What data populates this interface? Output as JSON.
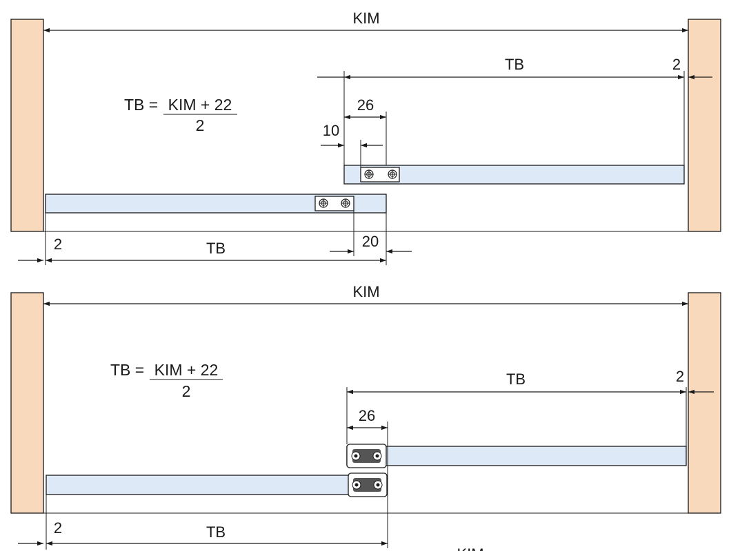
{
  "colors": {
    "cabinet_side": "#f8d9bc",
    "rail": "#dde9f6",
    "line": "#1a1a1a"
  },
  "diagram_top": {
    "width_label": "KIM",
    "formula": {
      "lhs": "TB = ",
      "numerator": "KIM + 22",
      "denominator": "2"
    },
    "right_rail": {
      "length_label": "TB",
      "gap_label": "2",
      "offset_label": "26",
      "inset_label": "10"
    },
    "left_rail": {
      "length_label": "TB",
      "gap_label": "2",
      "offset_label": "20"
    }
  },
  "diagram_bottom": {
    "width_label": "KIM",
    "formula": {
      "lhs": "TB = ",
      "numerator": "KIM + 22",
      "denominator": "2"
    },
    "right_rail": {
      "length_label": "TB",
      "gap_label": "2",
      "offset_label": "26"
    },
    "left_rail": {
      "length_label": "TB",
      "gap_label": "2"
    },
    "partial_label": "KIM"
  }
}
